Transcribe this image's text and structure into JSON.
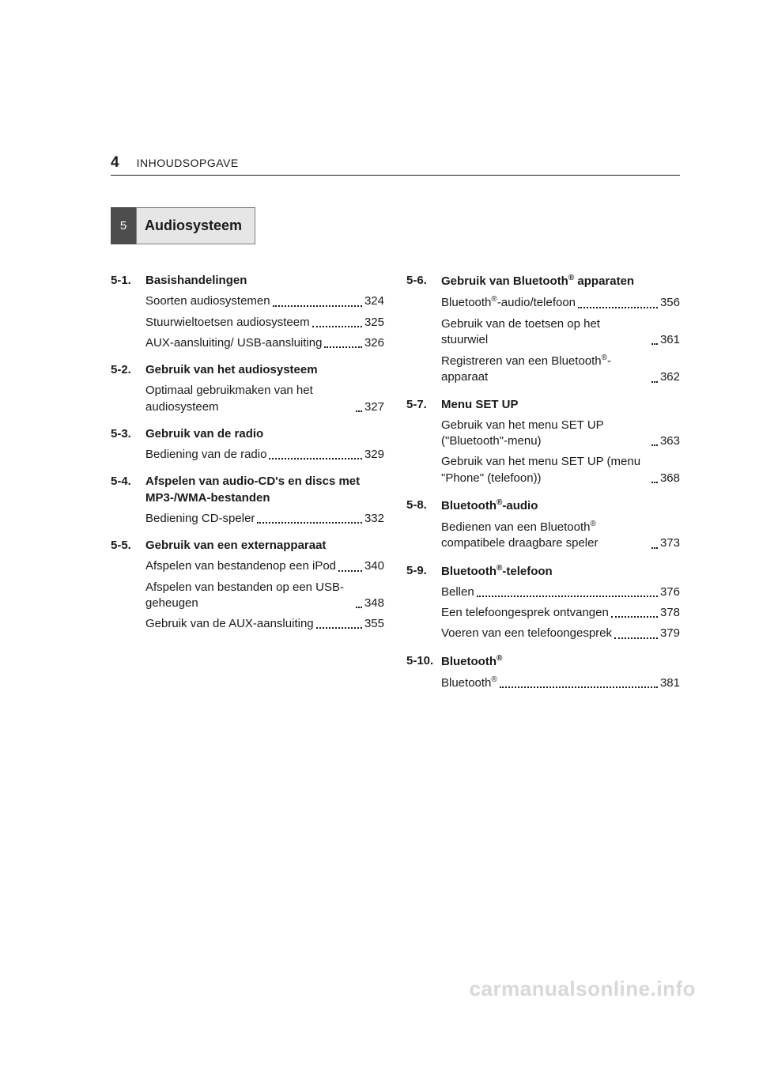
{
  "header": {
    "page_number": "4",
    "breadcrumb": "INHOUDSOPGAVE"
  },
  "chapter": {
    "number": "5",
    "title": "Audiosysteem"
  },
  "columns": [
    {
      "sections": [
        {
          "num": "5-1.",
          "title": "Basishandelingen",
          "entries": [
            {
              "label": "Soorten audiosystemen",
              "page": "324"
            },
            {
              "label": "Stuurwieltoetsen audiosysteem",
              "page": "325"
            },
            {
              "label": "AUX-aansluiting/ USB-aansluiting",
              "page": "326"
            }
          ]
        },
        {
          "num": "5-2.",
          "title": "Gebruik van het audiosysteem",
          "entries": [
            {
              "label": "Optimaal gebruikmaken van het audiosysteem",
              "page": "327"
            }
          ]
        },
        {
          "num": "5-3.",
          "title": "Gebruik van de radio",
          "entries": [
            {
              "label": "Bediening van de radio",
              "page": "329"
            }
          ]
        },
        {
          "num": "5-4.",
          "title": "Afspelen van audio-CD's en discs met MP3-/WMA-bestanden",
          "entries": [
            {
              "label": "Bediening CD-speler",
              "page": "332"
            }
          ]
        },
        {
          "num": "5-5.",
          "title": "Gebruik van een externapparaat",
          "entries": [
            {
              "label": "Afspelen van bestandenop een iPod",
              "page": "340"
            },
            {
              "label": "Afspelen van bestanden op een USB-geheugen",
              "page": "348"
            },
            {
              "label": "Gebruik van de AUX-aansluiting",
              "page": "355"
            }
          ]
        }
      ]
    },
    {
      "sections": [
        {
          "num": "5-6.",
          "title_html": "Gebruik van Bluetooth<sup>®</sup> apparaten",
          "entries": [
            {
              "label_html": "Bluetooth<sup>®</sup>-audio/telefoon",
              "page": "356"
            },
            {
              "label": "Gebruik van de toetsen op het stuurwiel",
              "page": "361"
            },
            {
              "label_html": "Registreren van een Bluetooth<sup>®</sup>-apparaat",
              "page": "362"
            }
          ]
        },
        {
          "num": "5-7.",
          "title": "Menu SET UP",
          "entries": [
            {
              "label": "Gebruik van het menu SET UP (\"Bluetooth\"-menu)",
              "page": "363"
            },
            {
              "label": "Gebruik van het menu SET UP (menu \"Phone\" (telefoon))",
              "page": "368"
            }
          ]
        },
        {
          "num": "5-8.",
          "title_html": "Bluetooth<sup>®</sup>-audio",
          "entries": [
            {
              "label_html": "Bedienen van een Bluetooth<sup>®</sup> compatibele draagbare speler",
              "page": "373"
            }
          ]
        },
        {
          "num": "5-9.",
          "title_html": "Bluetooth<sup>®</sup>-telefoon",
          "entries": [
            {
              "label": "Bellen",
              "page": "376"
            },
            {
              "label": "Een telefoongesprek ontvangen",
              "page": "378"
            },
            {
              "label": "Voeren van een telefoongesprek",
              "page": "379"
            }
          ]
        },
        {
          "num": "5-10.",
          "title_html": "Bluetooth<sup>®</sup>",
          "entries": [
            {
              "label_html": "Bluetooth<sup>®</sup>",
              "page": "381"
            }
          ]
        }
      ]
    }
  ],
  "watermark": "carmanualsonline.info"
}
